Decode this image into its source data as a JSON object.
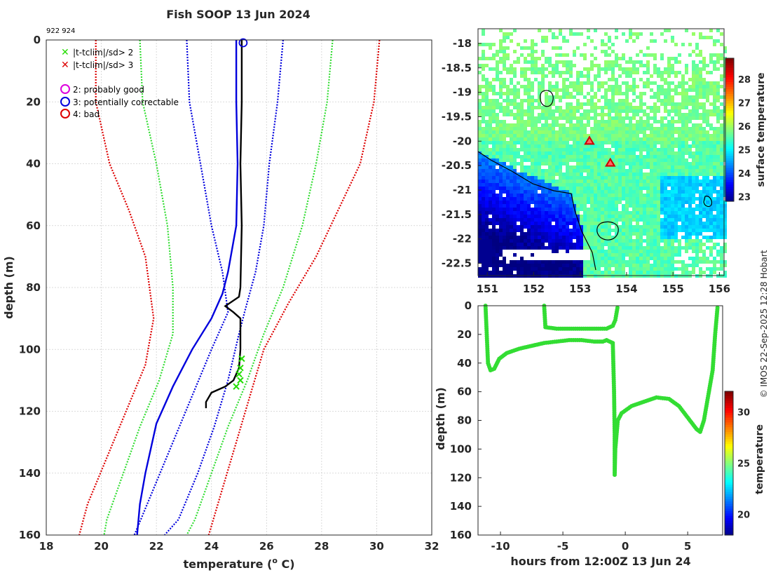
{
  "title": "Fish SOOP 13 Jun 2024",
  "ids": "922 924",
  "credit": "© IMOS 22-Sep-2025 12:28 Hobart",
  "colors": {
    "red": "#dd0000",
    "green": "#33dd33",
    "blue": "#0000dd",
    "black": "#000000",
    "magenta": "#dd00dd",
    "bright_green": "#22dd00"
  },
  "legend": {
    "flag2sd": "|t-tclim|/sd> 2",
    "flag3sd": "|t-tclim|/sd> 3",
    "q2": "2: probably good",
    "q3": "3: potentially correctable",
    "q4": "4: bad"
  },
  "chart_data": [
    {
      "type": "line",
      "name": "profile",
      "title": "Fish SOOP 13 Jun 2024",
      "xlabel": "temperature (",
      "xlabel_sup": "o",
      "xlabel_end": " C)",
      "ylabel": "depth (m)",
      "xlim": [
        18,
        32
      ],
      "ylim": [
        0,
        160
      ],
      "xticks": [
        18,
        20,
        22,
        24,
        26,
        28,
        30,
        32
      ],
      "yticks": [
        0,
        20,
        40,
        60,
        80,
        100,
        120,
        140,
        160
      ],
      "series": [
        {
          "name": "clim 3sd low",
          "color": "red",
          "dash": true,
          "points": [
            [
              19.8,
              0
            ],
            [
              19.8,
              20
            ],
            [
              20.3,
              40
            ],
            [
              21.0,
              55
            ],
            [
              21.6,
              70
            ],
            [
              21.9,
              90
            ],
            [
              21.6,
              105
            ],
            [
              20.9,
              120
            ],
            [
              20.2,
              135
            ],
            [
              19.5,
              150
            ],
            [
              19.2,
              160
            ]
          ]
        },
        {
          "name": "clim 3sd high",
          "color": "red",
          "dash": true,
          "points": [
            [
              30.1,
              0
            ],
            [
              29.9,
              20
            ],
            [
              29.4,
              40
            ],
            [
              28.6,
              55
            ],
            [
              27.8,
              70
            ],
            [
              26.8,
              85
            ],
            [
              25.9,
              100
            ],
            [
              25.4,
              115
            ],
            [
              24.9,
              130
            ],
            [
              24.4,
              145
            ],
            [
              23.9,
              160
            ]
          ]
        },
        {
          "name": "clim 2sd low",
          "color": "green",
          "dash": true,
          "points": [
            [
              21.4,
              0
            ],
            [
              21.5,
              20
            ],
            [
              22.0,
              40
            ],
            [
              22.4,
              60
            ],
            [
              22.6,
              80
            ],
            [
              22.6,
              95
            ],
            [
              22.1,
              110
            ],
            [
              21.4,
              125
            ],
            [
              20.8,
              140
            ],
            [
              20.2,
              155
            ],
            [
              20.1,
              160
            ]
          ]
        },
        {
          "name": "clim 2sd high",
          "color": "green",
          "dash": true,
          "points": [
            [
              28.4,
              0
            ],
            [
              28.2,
              20
            ],
            [
              27.8,
              40
            ],
            [
              27.3,
              60
            ],
            [
              26.6,
              80
            ],
            [
              25.9,
              95
            ],
            [
              25.3,
              110
            ],
            [
              24.6,
              125
            ],
            [
              24.0,
              140
            ],
            [
              23.4,
              155
            ],
            [
              23.1,
              160
            ]
          ]
        },
        {
          "name": "clim 1sd low",
          "color": "blue",
          "dash": true,
          "points": [
            [
              23.1,
              0
            ],
            [
              23.2,
              20
            ],
            [
              23.6,
              40
            ],
            [
              24.0,
              60
            ],
            [
              24.4,
              75
            ],
            [
              24.6,
              88
            ],
            [
              24.0,
              100
            ],
            [
              23.3,
              115
            ],
            [
              22.6,
              130
            ],
            [
              21.9,
              145
            ],
            [
              21.2,
              160
            ]
          ]
        },
        {
          "name": "clim 1sd high",
          "color": "blue",
          "dash": true,
          "points": [
            [
              26.6,
              0
            ],
            [
              26.4,
              20
            ],
            [
              26.1,
              40
            ],
            [
              25.9,
              60
            ],
            [
              25.6,
              75
            ],
            [
              25.2,
              88
            ],
            [
              25.0,
              95
            ],
            [
              24.6,
              110
            ],
            [
              24.1,
              125
            ],
            [
              23.5,
              140
            ],
            [
              22.8,
              155
            ],
            [
              22.3,
              160
            ]
          ]
        },
        {
          "name": "climatology mean",
          "color": "blue",
          "dash": false,
          "points": [
            [
              24.9,
              0
            ],
            [
              24.9,
              20
            ],
            [
              24.95,
              40
            ],
            [
              24.9,
              60
            ],
            [
              24.6,
              75
            ],
            [
              24.4,
              82
            ],
            [
              24.0,
              90
            ],
            [
              23.3,
              100
            ],
            [
              22.6,
              112
            ],
            [
              22.0,
              124
            ],
            [
              21.6,
              140
            ],
            [
              21.4,
              150
            ],
            [
              21.3,
              160
            ]
          ]
        },
        {
          "name": "profile temperature",
          "color": "black",
          "dash": false,
          "points": [
            [
              25.1,
              0
            ],
            [
              25.1,
              20
            ],
            [
              25.05,
              40
            ],
            [
              25.1,
              60
            ],
            [
              25.05,
              80
            ],
            [
              25.0,
              83
            ],
            [
              24.5,
              86
            ],
            [
              24.8,
              88
            ],
            [
              25.05,
              90
            ],
            [
              25.05,
              100
            ],
            [
              25.0,
              106
            ],
            [
              24.8,
              110
            ],
            [
              24.5,
              112
            ],
            [
              24.0,
              114
            ],
            [
              23.8,
              117
            ],
            [
              23.8,
              119
            ]
          ]
        }
      ],
      "flags_2sd": [
        [
          25.1,
          103
        ],
        [
          25.05,
          106
        ],
        [
          25.0,
          108
        ],
        [
          25.05,
          110
        ],
        [
          24.9,
          112
        ]
      ],
      "start_marker": [
        25.15,
        0
      ]
    },
    {
      "type": "heatmap",
      "name": "surface temperature map",
      "colorbar_label": "surface temperature",
      "xlim": [
        150.8,
        156.1
      ],
      "ylim": [
        -22.75,
        -17.7
      ],
      "xticks": [
        151,
        152,
        153,
        154,
        155,
        156
      ],
      "yticks": [
        -18,
        -18.5,
        -19,
        -19.5,
        -20,
        -20.5,
        -21,
        -21.5,
        -22,
        -22.5
      ],
      "clim": [
        22.8,
        28.9
      ],
      "cticks": [
        23,
        24,
        25,
        26,
        27,
        28
      ],
      "markers": [
        [
          153.2,
          -20.0
        ],
        [
          153.65,
          -20.45
        ]
      ]
    },
    {
      "type": "scatter",
      "name": "deployment depth vs time",
      "xlabel": "hours from 12:00Z 13 Jun 24",
      "ylabel": "depth (m)",
      "colorbar_label": "temperature",
      "xlim": [
        -11.8,
        7.8
      ],
      "ylim": [
        0,
        160
      ],
      "xticks": [
        -10,
        -5,
        0,
        5
      ],
      "yticks": [
        0,
        20,
        40,
        60,
        80,
        100,
        120,
        140,
        160
      ],
      "clim": [
        18,
        32
      ],
      "cticks": [
        20,
        25,
        30
      ],
      "points": [
        [
          -11.2,
          0
        ],
        [
          -11.1,
          20
        ],
        [
          -11.0,
          40
        ],
        [
          -10.8,
          45
        ],
        [
          -10.5,
          44
        ],
        [
          -10.1,
          37
        ],
        [
          -9.5,
          33
        ],
        [
          -8.5,
          30
        ],
        [
          -7.5,
          28
        ],
        [
          -6.5,
          26
        ],
        [
          -5.5,
          25
        ],
        [
          -4.5,
          24
        ],
        [
          -3.5,
          24
        ],
        [
          -2.5,
          25
        ],
        [
          -1.8,
          25
        ],
        [
          -1.5,
          24
        ],
        [
          -1.0,
          26
        ],
        [
          -0.9,
          60
        ],
        [
          -0.85,
          90
        ],
        [
          -0.85,
          118
        ],
        [
          -0.8,
          100
        ],
        [
          -0.6,
          80
        ],
        [
          -0.3,
          75
        ],
        [
          0.5,
          70
        ],
        [
          1.5,
          67
        ],
        [
          2.5,
          64
        ],
        [
          3.5,
          65
        ],
        [
          4.3,
          70
        ],
        [
          5.0,
          78
        ],
        [
          5.7,
          86
        ],
        [
          6.0,
          88
        ],
        [
          6.3,
          80
        ],
        [
          6.7,
          60
        ],
        [
          7.0,
          45
        ],
        [
          7.2,
          20
        ],
        [
          7.4,
          0
        ],
        [
          -6.5,
          0
        ],
        [
          -6.4,
          15
        ],
        [
          -5.5,
          16
        ],
        [
          -4.0,
          16
        ],
        [
          -2.5,
          16
        ],
        [
          -1.5,
          16
        ],
        [
          -1.0,
          14
        ],
        [
          -0.8,
          10
        ],
        [
          -0.6,
          0
        ]
      ]
    }
  ]
}
